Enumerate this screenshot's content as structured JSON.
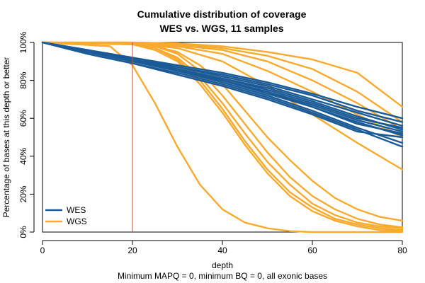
{
  "chart_data": {
    "type": "line",
    "title_lines": [
      "Cumulative distribution of coverage",
      "WES vs. WGS, 11 samples"
    ],
    "xlabel": "depth",
    "ylabel": "Percentage of bases at this depth or better",
    "subtitle": "Minimum MAPQ = 0, minimum BQ = 0, all exonic bases",
    "xlim": [
      0,
      80
    ],
    "ylim": [
      0,
      100
    ],
    "x_ticks": [
      0,
      20,
      40,
      60,
      80
    ],
    "x_tick_labels": [
      "0",
      "20",
      "40",
      "60",
      "80"
    ],
    "y_ticks": [
      0,
      20,
      40,
      60,
      80,
      100
    ],
    "y_tick_labels": [
      "0%",
      "20%",
      "40%",
      "60%",
      "80%",
      "100%"
    ],
    "vline": {
      "x": 20,
      "color": "#d9402f"
    },
    "colors": {
      "WES": "#1a5a96",
      "WGS": "#f7aa2e"
    },
    "legend": {
      "position": "bottom-left",
      "entries": [
        "WES",
        "WGS"
      ]
    },
    "series": [
      {
        "name": "WES",
        "group": "WES",
        "x": [
          0,
          10,
          20,
          30,
          40,
          50,
          60,
          70,
          80
        ],
        "y": [
          100,
          96,
          92,
          88,
          84,
          79,
          73,
          66,
          60
        ]
      },
      {
        "name": "WES",
        "group": "WES",
        "x": [
          0,
          10,
          20,
          30,
          40,
          50,
          60,
          70,
          80
        ],
        "y": [
          100,
          96,
          92,
          87,
          83,
          78,
          72,
          64,
          58
        ]
      },
      {
        "name": "WES",
        "group": "WES",
        "x": [
          0,
          10,
          20,
          30,
          40,
          50,
          60,
          70,
          80
        ],
        "y": [
          100,
          96,
          91,
          87,
          82,
          77,
          70,
          63,
          56
        ]
      },
      {
        "name": "WES",
        "group": "WES",
        "x": [
          0,
          10,
          20,
          30,
          40,
          50,
          60,
          70,
          80
        ],
        "y": [
          100,
          95,
          91,
          86,
          81,
          76,
          69,
          61,
          54
        ]
      },
      {
        "name": "WES",
        "group": "WES",
        "x": [
          0,
          10,
          20,
          30,
          40,
          50,
          60,
          70,
          80
        ],
        "y": [
          100,
          95,
          90,
          86,
          80,
          74,
          67,
          59,
          53
        ]
      },
      {
        "name": "WES",
        "group": "WES",
        "x": [
          0,
          10,
          20,
          30,
          40,
          50,
          60,
          70,
          80
        ],
        "y": [
          100,
          95,
          90,
          85,
          80,
          73,
          66,
          58,
          51
        ]
      },
      {
        "name": "WES",
        "group": "WES",
        "x": [
          0,
          10,
          20,
          30,
          40,
          50,
          60,
          70,
          80
        ],
        "y": [
          100,
          95,
          90,
          85,
          79,
          72,
          64,
          55,
          47
        ]
      },
      {
        "name": "WES",
        "group": "WES",
        "x": [
          0,
          10,
          20,
          30,
          40,
          50,
          60,
          70,
          80
        ],
        "y": [
          100,
          94,
          89,
          84,
          78,
          71,
          63,
          54,
          45
        ]
      },
      {
        "name": "WES",
        "group": "WES",
        "x": [
          0,
          10,
          20,
          30,
          40,
          50,
          60,
          70,
          80
        ],
        "y": [
          100,
          94,
          89,
          83,
          77,
          70,
          62,
          53,
          50
        ]
      },
      {
        "name": "WES",
        "group": "WES",
        "x": [
          0,
          10,
          20,
          30,
          40,
          50,
          60,
          70,
          80
        ],
        "y": [
          100,
          95,
          91,
          85,
          80,
          74,
          66,
          57,
          52
        ]
      },
      {
        "name": "WES",
        "group": "WES",
        "x": [
          0,
          10,
          20,
          30,
          40,
          50,
          60,
          70,
          80
        ],
        "y": [
          100,
          96,
          91,
          86,
          81,
          75,
          68,
          60,
          55
        ]
      },
      {
        "name": "WGS",
        "group": "WGS",
        "x": [
          0,
          15,
          20,
          25,
          30,
          35,
          40,
          45,
          50,
          55,
          60,
          70,
          80
        ],
        "y": [
          100,
          98,
          88,
          68,
          45,
          25,
          12,
          5,
          2,
          0.5,
          0,
          0,
          0
        ]
      },
      {
        "name": "WGS",
        "group": "WGS",
        "x": [
          0,
          20,
          25,
          30,
          35,
          40,
          45,
          50,
          55,
          60,
          65,
          70,
          75,
          80
        ],
        "y": [
          100,
          99,
          96,
          90,
          78,
          63,
          46,
          31,
          19,
          11,
          6,
          3,
          1,
          0.5
        ]
      },
      {
        "name": "WGS",
        "group": "WGS",
        "x": [
          0,
          20,
          25,
          30,
          35,
          40,
          45,
          50,
          55,
          60,
          65,
          70,
          75,
          80
        ],
        "y": [
          100,
          99,
          97,
          91,
          80,
          65,
          48,
          33,
          21,
          13,
          7,
          4,
          2,
          1
        ]
      },
      {
        "name": "WGS",
        "group": "WGS",
        "x": [
          0,
          20,
          25,
          30,
          35,
          40,
          45,
          50,
          55,
          60,
          65,
          70,
          75,
          80
        ],
        "y": [
          100,
          99,
          97,
          92,
          82,
          68,
          52,
          37,
          25,
          15,
          9,
          5,
          3,
          2
        ]
      },
      {
        "name": "WGS",
        "group": "WGS",
        "x": [
          0,
          20,
          25,
          30,
          35,
          40,
          45,
          50,
          55,
          60,
          65,
          70,
          75,
          80
        ],
        "y": [
          100,
          99.5,
          98,
          94,
          85,
          72,
          57,
          42,
          29,
          19,
          12,
          7,
          4,
          2.5
        ]
      },
      {
        "name": "WGS",
        "group": "WGS",
        "x": [
          0,
          20,
          25,
          30,
          35,
          40,
          45,
          50,
          55,
          60,
          65,
          70,
          75,
          80
        ],
        "y": [
          100,
          99.5,
          98,
          95,
          88,
          78,
          64,
          50,
          38,
          27,
          18,
          12,
          8,
          6
        ]
      },
      {
        "name": "WGS",
        "group": "WGS",
        "x": [
          0,
          20,
          30,
          40,
          50,
          60,
          70,
          80
        ],
        "y": [
          100,
          99.5,
          97,
          90,
          77,
          62,
          47,
          33
        ]
      },
      {
        "name": "WGS",
        "group": "WGS",
        "x": [
          0,
          20,
          30,
          40,
          50,
          60,
          70,
          80
        ],
        "y": [
          100,
          99.5,
          98,
          94,
          85,
          74,
          62,
          50
        ]
      },
      {
        "name": "WGS",
        "group": "WGS",
        "x": [
          0,
          20,
          30,
          40,
          50,
          60,
          70,
          80
        ],
        "y": [
          100,
          99.5,
          98.5,
          96,
          90,
          80,
          68,
          54
        ]
      },
      {
        "name": "WGS",
        "group": "WGS",
        "x": [
          0,
          20,
          30,
          40,
          50,
          60,
          70,
          80
        ],
        "y": [
          100,
          99.5,
          99,
          97,
          93,
          86,
          74,
          58
        ]
      },
      {
        "name": "WGS",
        "group": "WGS",
        "x": [
          0,
          20,
          30,
          40,
          50,
          60,
          70,
          80
        ],
        "y": [
          100,
          100,
          99.5,
          98,
          95,
          91,
          84,
          66
        ]
      }
    ]
  }
}
